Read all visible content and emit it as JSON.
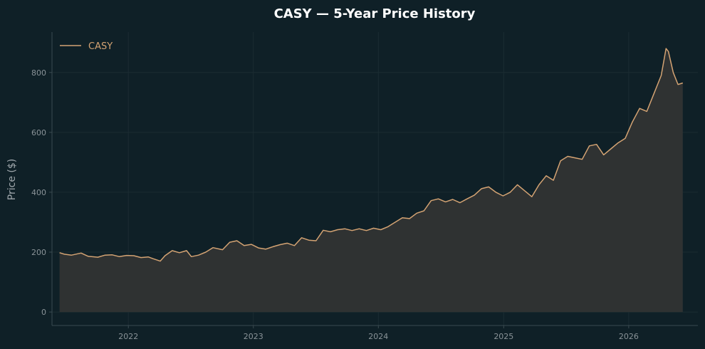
{
  "chart_data": {
    "type": "area",
    "title": "CASY — 5-Year Price History",
    "xlabel": "",
    "ylabel": "Price ($)",
    "xlim": [
      "2021-05-23",
      "2026-07-22"
    ],
    "ylim": [
      -45,
      935
    ],
    "x_ticks": [
      "2022",
      "2023",
      "2024",
      "2025",
      "2026"
    ],
    "y_ticks": [
      0,
      200,
      400,
      600,
      800
    ],
    "grid": true,
    "legend": "top-left",
    "colors": {
      "background": "#0f2027",
      "line": "#d4a373",
      "fill": "#2f3232",
      "grid": "#1b2c32",
      "spine": "#3a4a50",
      "tick_text": "#8a9398",
      "title": "#ffffff",
      "axis_label": "#a0a8ad"
    },
    "series": [
      {
        "name": "CASY",
        "points": [
          [
            "2021-06-14",
            198
          ],
          [
            "2021-06-28",
            193
          ],
          [
            "2021-07-19",
            190
          ],
          [
            "2021-08-16",
            197
          ],
          [
            "2021-09-06",
            186
          ],
          [
            "2021-10-04",
            183
          ],
          [
            "2021-10-25",
            190
          ],
          [
            "2021-11-15",
            191
          ],
          [
            "2021-12-06",
            185
          ],
          [
            "2021-12-27",
            189
          ],
          [
            "2022-01-17",
            188
          ],
          [
            "2022-02-07",
            182
          ],
          [
            "2022-02-28",
            184
          ],
          [
            "2022-03-14",
            178
          ],
          [
            "2022-04-04",
            170
          ],
          [
            "2022-04-18",
            188
          ],
          [
            "2022-05-09",
            205
          ],
          [
            "2022-05-30",
            198
          ],
          [
            "2022-06-20",
            205
          ],
          [
            "2022-07-04",
            185
          ],
          [
            "2022-07-25",
            190
          ],
          [
            "2022-08-15",
            200
          ],
          [
            "2022-09-05",
            215
          ],
          [
            "2022-10-03",
            208
          ],
          [
            "2022-10-24",
            233
          ],
          [
            "2022-11-14",
            238
          ],
          [
            "2022-12-05",
            222
          ],
          [
            "2022-12-26",
            226
          ],
          [
            "2023-01-16",
            214
          ],
          [
            "2023-02-06",
            210
          ],
          [
            "2023-02-27",
            218
          ],
          [
            "2023-03-20",
            225
          ],
          [
            "2023-04-10",
            230
          ],
          [
            "2023-05-01",
            222
          ],
          [
            "2023-05-22",
            248
          ],
          [
            "2023-06-12",
            240
          ],
          [
            "2023-07-03",
            238
          ],
          [
            "2023-07-24",
            273
          ],
          [
            "2023-08-14",
            268
          ],
          [
            "2023-09-04",
            275
          ],
          [
            "2023-09-25",
            278
          ],
          [
            "2023-10-16",
            272
          ],
          [
            "2023-11-06",
            278
          ],
          [
            "2023-11-27",
            272
          ],
          [
            "2023-12-18",
            280
          ],
          [
            "2024-01-08",
            275
          ],
          [
            "2024-01-29",
            285
          ],
          [
            "2024-02-19",
            300
          ],
          [
            "2024-03-11",
            315
          ],
          [
            "2024-04-01",
            312
          ],
          [
            "2024-04-22",
            330
          ],
          [
            "2024-05-13",
            338
          ],
          [
            "2024-06-03",
            372
          ],
          [
            "2024-06-24",
            378
          ],
          [
            "2024-07-15",
            368
          ],
          [
            "2024-08-05",
            376
          ],
          [
            "2024-08-26",
            365
          ],
          [
            "2024-09-16",
            378
          ],
          [
            "2024-10-07",
            390
          ],
          [
            "2024-10-28",
            412
          ],
          [
            "2024-11-18",
            418
          ],
          [
            "2024-12-09",
            400
          ],
          [
            "2024-12-30",
            388
          ],
          [
            "2025-01-20",
            400
          ],
          [
            "2025-02-10",
            425
          ],
          [
            "2025-03-03",
            405
          ],
          [
            "2025-03-24",
            385
          ],
          [
            "2025-04-14",
            425
          ],
          [
            "2025-05-05",
            455
          ],
          [
            "2025-05-26",
            440
          ],
          [
            "2025-06-16",
            505
          ],
          [
            "2025-07-07",
            520
          ],
          [
            "2025-07-28",
            515
          ],
          [
            "2025-08-18",
            510
          ],
          [
            "2025-09-08",
            555
          ],
          [
            "2025-09-29",
            560
          ],
          [
            "2025-10-20",
            525
          ],
          [
            "2025-11-10",
            545
          ],
          [
            "2025-12-01",
            565
          ],
          [
            "2025-12-22",
            580
          ],
          [
            "2026-01-12",
            635
          ],
          [
            "2026-02-02",
            680
          ],
          [
            "2026-02-23",
            670
          ],
          [
            "2026-03-16",
            730
          ],
          [
            "2026-04-06",
            790
          ],
          [
            "2026-04-20",
            880
          ],
          [
            "2026-04-27",
            870
          ],
          [
            "2026-05-11",
            800
          ],
          [
            "2026-05-25",
            760
          ],
          [
            "2026-06-08",
            765
          ]
        ]
      }
    ]
  }
}
